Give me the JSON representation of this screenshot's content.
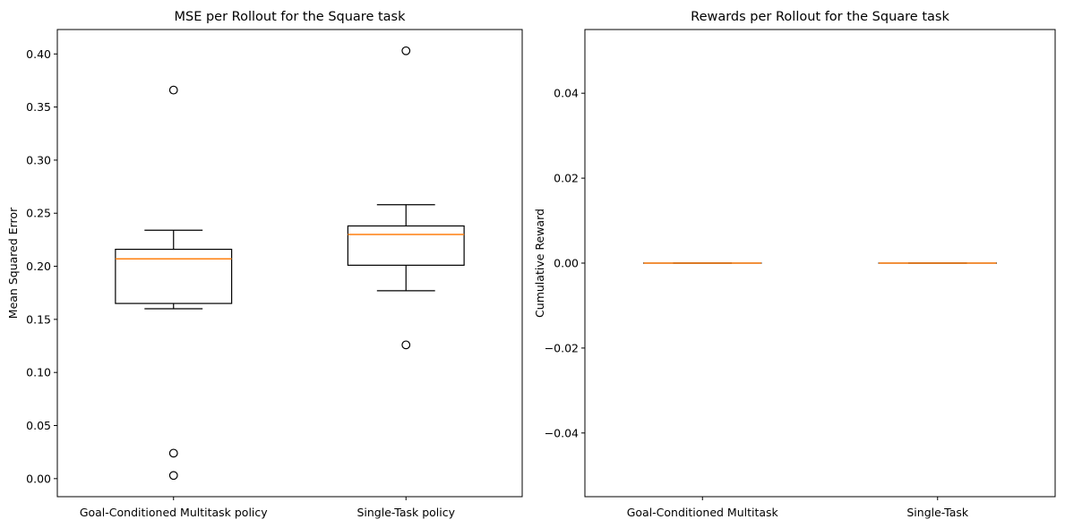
{
  "colors": {
    "box": "#000000",
    "median": "#ff7f0e",
    "background": "#ffffff"
  },
  "chart_data": [
    {
      "type": "box",
      "title": "MSE per Rollout for the Square task",
      "xlabel": "",
      "ylabel": "Mean Squared Error",
      "ylim": [
        -0.017,
        0.423
      ],
      "yticks": [
        "0.00",
        "0.05",
        "0.10",
        "0.15",
        "0.20",
        "0.25",
        "0.30",
        "0.35",
        "0.40"
      ],
      "categories": [
        "Goal-Conditioned Multitask policy",
        "Single-Task policy"
      ],
      "boxes": [
        {
          "whisker_low": 0.16,
          "q1": 0.165,
          "median": 0.207,
          "q3": 0.216,
          "whisker_high": 0.234,
          "fliers": [
            0.366,
            0.024,
            0.003
          ]
        },
        {
          "whisker_low": 0.177,
          "q1": 0.201,
          "median": 0.23,
          "q3": 0.238,
          "whisker_high": 0.258,
          "fliers": [
            0.403,
            0.126
          ]
        }
      ]
    },
    {
      "type": "box",
      "title": "Rewards per Rollout for the Square task",
      "xlabel": "",
      "ylabel": "Cumulative Reward",
      "ylim": [
        -0.055,
        0.055
      ],
      "yticks": [
        "−0.04",
        "−0.02",
        "0.00",
        "0.02",
        "0.04"
      ],
      "categories": [
        "Goal-Conditioned Multitask",
        "Single-Task"
      ],
      "boxes": [
        {
          "whisker_low": 0,
          "q1": 0,
          "median": 0,
          "q3": 0,
          "whisker_high": 0,
          "fliers": []
        },
        {
          "whisker_low": 0,
          "q1": 0,
          "median": 0,
          "q3": 0,
          "whisker_high": 0,
          "fliers": []
        }
      ]
    }
  ]
}
